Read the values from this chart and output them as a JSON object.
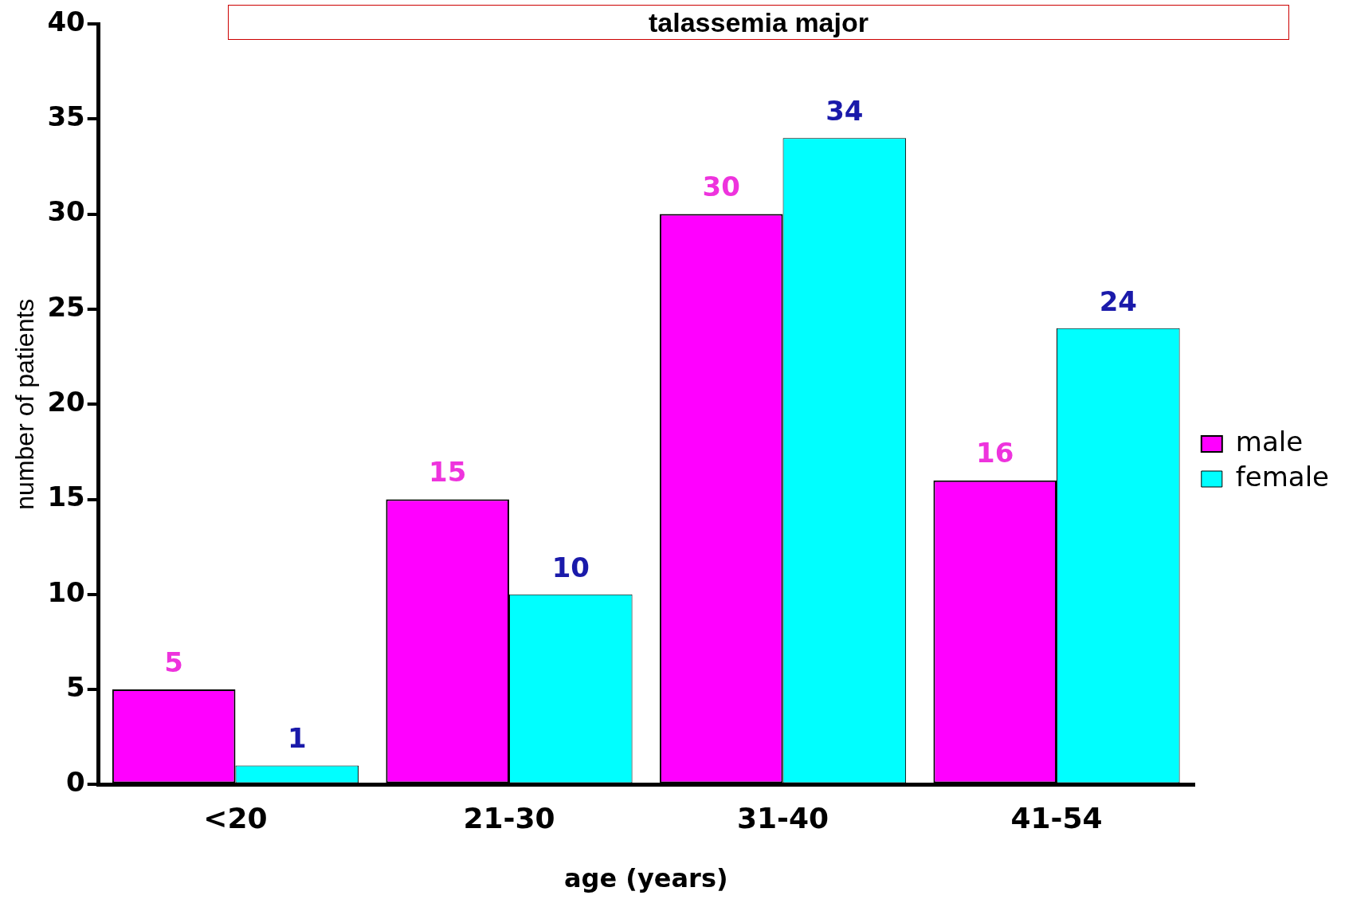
{
  "chart_data": {
    "type": "bar",
    "title": "talassemia major",
    "xlabel": "age (years)",
    "ylabel": "number of patients",
    "categories": [
      "<20",
      "21-30",
      "31-40",
      "41-54"
    ],
    "series": [
      {
        "name": "male",
        "color": "#ff00ff",
        "values": [
          5,
          15,
          30,
          16
        ]
      },
      {
        "name": "female",
        "color": "#00ffff",
        "values": [
          1,
          10,
          34,
          24
        ]
      }
    ],
    "ylim": [
      0,
      40
    ],
    "yticks": [
      0,
      5,
      10,
      15,
      20,
      25,
      30,
      35,
      40
    ],
    "grid": false,
    "legend": "right",
    "data_labels": true
  }
}
